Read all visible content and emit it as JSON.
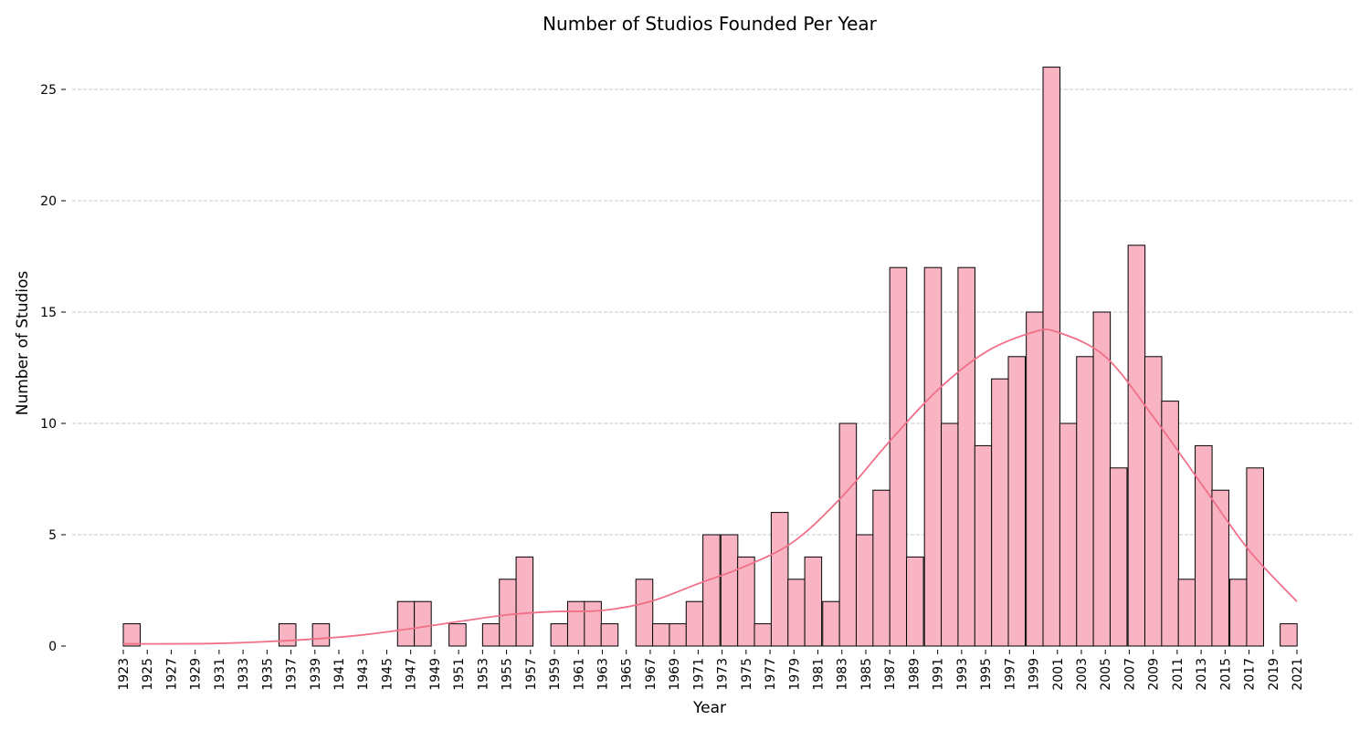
{
  "chart_data": {
    "type": "bar",
    "title": "Number of Studios Founded Per Year",
    "xlabel": "Year",
    "ylabel": "Number of Studios",
    "xlim": [
      1923,
      2021
    ],
    "ylim": [
      0,
      27
    ],
    "grid": "horizontal",
    "x_ticks": [
      1923,
      1925,
      1927,
      1929,
      1931,
      1933,
      1935,
      1937,
      1939,
      1941,
      1943,
      1945,
      1947,
      1949,
      1951,
      1953,
      1955,
      1957,
      1959,
      1961,
      1963,
      1965,
      1967,
      1969,
      1971,
      1973,
      1975,
      1977,
      1979,
      1981,
      1983,
      1985,
      1987,
      1989,
      1991,
      1993,
      1995,
      1997,
      1999,
      2001,
      2003,
      2005,
      2007,
      2009,
      2011,
      2013,
      2015,
      2017,
      2019,
      2021
    ],
    "y_ticks": [
      0,
      5,
      10,
      15,
      20,
      25
    ],
    "bins": [
      {
        "start": 1923.0,
        "value": 1
      },
      {
        "start": 1936.0,
        "value": 1
      },
      {
        "start": 1938.8,
        "value": 1
      },
      {
        "start": 1945.9,
        "value": 2
      },
      {
        "start": 1947.3,
        "value": 2
      },
      {
        "start": 1950.2,
        "value": 1
      },
      {
        "start": 1953.0,
        "value": 1
      },
      {
        "start": 1954.4,
        "value": 3
      },
      {
        "start": 1955.8,
        "value": 4
      },
      {
        "start": 1958.7,
        "value": 1
      },
      {
        "start": 1960.1,
        "value": 2
      },
      {
        "start": 1961.5,
        "value": 2
      },
      {
        "start": 1962.9,
        "value": 1
      },
      {
        "start": 1965.8,
        "value": 3
      },
      {
        "start": 1967.2,
        "value": 1
      },
      {
        "start": 1968.6,
        "value": 1
      },
      {
        "start": 1970.0,
        "value": 2
      },
      {
        "start": 1971.4,
        "value": 5
      },
      {
        "start": 1972.9,
        "value": 5
      },
      {
        "start": 1974.3,
        "value": 4
      },
      {
        "start": 1975.7,
        "value": 1
      },
      {
        "start": 1977.1,
        "value": 6
      },
      {
        "start": 1978.5,
        "value": 3
      },
      {
        "start": 1979.9,
        "value": 4
      },
      {
        "start": 1981.4,
        "value": 2
      },
      {
        "start": 1982.8,
        "value": 10
      },
      {
        "start": 1984.2,
        "value": 5
      },
      {
        "start": 1985.6,
        "value": 7
      },
      {
        "start": 1987.0,
        "value": 17
      },
      {
        "start": 1988.4,
        "value": 4
      },
      {
        "start": 1989.9,
        "value": 17
      },
      {
        "start": 1991.3,
        "value": 10
      },
      {
        "start": 1992.7,
        "value": 17
      },
      {
        "start": 1994.1,
        "value": 9
      },
      {
        "start": 1995.5,
        "value": 12
      },
      {
        "start": 1996.9,
        "value": 13
      },
      {
        "start": 1998.4,
        "value": 15
      },
      {
        "start": 1999.8,
        "value": 26
      },
      {
        "start": 2001.2,
        "value": 10
      },
      {
        "start": 2002.6,
        "value": 13
      },
      {
        "start": 2004.0,
        "value": 15
      },
      {
        "start": 2005.4,
        "value": 8
      },
      {
        "start": 2006.9,
        "value": 18
      },
      {
        "start": 2008.3,
        "value": 13
      },
      {
        "start": 2009.7,
        "value": 11
      },
      {
        "start": 2011.1,
        "value": 3
      },
      {
        "start": 2012.5,
        "value": 9
      },
      {
        "start": 2013.9,
        "value": 7
      },
      {
        "start": 2015.4,
        "value": 3
      },
      {
        "start": 2016.8,
        "value": 8
      },
      {
        "start": 2019.6,
        "value": 1
      }
    ],
    "bin_width": 1.4143,
    "kde": {
      "x": [
        1923,
        1927,
        1931,
        1935,
        1939,
        1943,
        1947,
        1951,
        1955,
        1959,
        1963,
        1967,
        1971,
        1975,
        1979,
        1983,
        1987,
        1991,
        1995,
        1999,
        2001,
        2005,
        2009,
        2013,
        2017,
        2021
      ],
      "y": [
        0.1,
        0.1,
        0.12,
        0.2,
        0.32,
        0.5,
        0.78,
        1.1,
        1.4,
        1.55,
        1.6,
        2.0,
        2.8,
        3.6,
        4.7,
        6.7,
        9.2,
        11.5,
        13.2,
        14.1,
        14.1,
        13.0,
        10.3,
        7.3,
        4.3,
        2.0
      ]
    },
    "colors": {
      "bar_fill": "#f8b4c2",
      "bar_edge": "#000000",
      "kde_line": "#f07088",
      "grid": "#c8c8c8"
    }
  }
}
